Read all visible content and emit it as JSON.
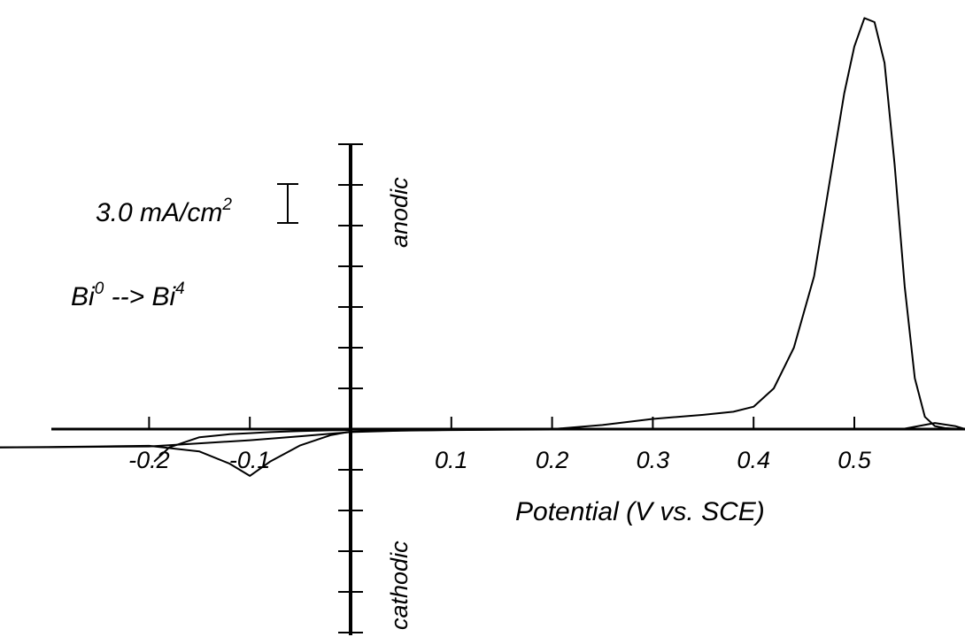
{
  "chart_data": {
    "type": "line",
    "title": "",
    "xlabel": "Potential (V vs. SCE)",
    "ylabel_positive": "anodic",
    "ylabel_negative": "cathodic",
    "x_tick_labels": [
      "-0.2",
      "-0.1",
      "0.1",
      "0.2",
      "0.3",
      "0.4",
      "0.5"
    ],
    "xlim": [
      -0.35,
      0.61
    ],
    "scale_bar": {
      "value": "3.0 mA/cm",
      "superscript": "2"
    },
    "reaction": {
      "left": "Bi",
      "left_sup": "0",
      "arrow": "-->",
      "right": "Bi",
      "right_sup": "4"
    },
    "series": [
      {
        "x": [
          -0.35,
          -0.3,
          -0.25,
          -0.2,
          -0.15,
          -0.12,
          -0.1,
          -0.08,
          -0.05,
          -0.02,
          0.0,
          0.05,
          0.1,
          0.15,
          0.2,
          0.25,
          0.3,
          0.35,
          0.38,
          0.4,
          0.42,
          0.44,
          0.46,
          0.47,
          0.48,
          0.49,
          0.5,
          0.51,
          0.52,
          0.53,
          0.54,
          0.55,
          0.56,
          0.57,
          0.58,
          0.59,
          0.6,
          0.61
        ],
        "y": [
          -0.9,
          -0.88,
          -0.85,
          -0.82,
          -1.1,
          -1.7,
          -2.3,
          -1.6,
          -0.8,
          -0.3,
          -0.12,
          -0.07,
          -0.04,
          -0.02,
          0.0,
          0.2,
          0.5,
          0.7,
          0.85,
          1.1,
          2.0,
          4.0,
          7.5,
          10.5,
          13.5,
          16.5,
          18.8,
          20.2,
          20.0,
          18.0,
          13.0,
          7.0,
          2.5,
          0.6,
          0.15,
          0.05,
          0.02,
          0.0
        ]
      },
      {
        "x": [
          -0.35,
          -0.3,
          -0.25,
          -0.2,
          -0.15,
          -0.1,
          -0.05,
          0.0,
          0.05,
          0.1,
          0.15,
          0.2,
          0.25,
          0.3,
          0.35,
          0.4,
          0.45,
          0.5,
          0.55,
          0.58,
          0.6,
          0.61
        ],
        "y": [
          -0.9,
          -0.89,
          -0.87,
          -0.85,
          -0.7,
          -0.55,
          -0.35,
          -0.15,
          -0.08,
          -0.05,
          -0.03,
          -0.02,
          -0.01,
          0.0,
          0.0,
          0.0,
          0.0,
          0.0,
          0.02,
          0.3,
          0.15,
          0.0
        ]
      },
      {
        "x": [
          -0.195,
          -0.18,
          -0.15,
          -0.12,
          -0.1,
          -0.08,
          -0.05,
          -0.02,
          0.0
        ],
        "y": [
          -1.6,
          -0.9,
          -0.4,
          -0.25,
          -0.2,
          -0.15,
          -0.1,
          -0.06,
          -0.05
        ]
      }
    ]
  }
}
